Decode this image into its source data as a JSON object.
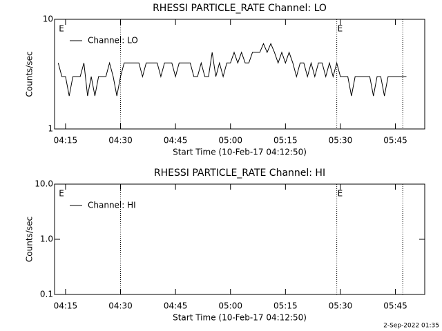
{
  "chart_data": [
    {
      "type": "line",
      "title": "RHESSI PARTICLE_RATE Channel: LO",
      "x_label": "Start Time (10-Feb-17 04:12:50)",
      "y_label": "Counts/sec",
      "y_log": true,
      "xlim": [
        "04:12",
        "05:53"
      ],
      "xticks": [
        "04:15",
        "04:30",
        "04:45",
        "05:00",
        "05:15",
        "05:30",
        "05:45"
      ],
      "ylim": [
        1,
        10
      ],
      "yticks": [
        1,
        10
      ],
      "legend": "upper left",
      "event_lines": [
        "04:30",
        "05:29",
        "05:47"
      ],
      "annotations": [
        {
          "text": "E",
          "x": "04:13"
        },
        {
          "text": "E",
          "x": "05:29"
        }
      ],
      "x": [
        "04:13",
        "04:14",
        "04:15",
        "04:16",
        "04:17",
        "04:18",
        "04:19",
        "04:20",
        "04:21",
        "04:22",
        "04:23",
        "04:24",
        "04:25",
        "04:26",
        "04:27",
        "04:28",
        "04:29",
        "04:30",
        "04:31",
        "04:32",
        "04:33",
        "04:34",
        "04:35",
        "04:36",
        "04:37",
        "04:38",
        "04:39",
        "04:40",
        "04:41",
        "04:42",
        "04:43",
        "04:44",
        "04:45",
        "04:46",
        "04:47",
        "04:48",
        "04:49",
        "04:50",
        "04:51",
        "04:52",
        "04:53",
        "04:54",
        "04:55",
        "04:56",
        "04:57",
        "04:58",
        "04:59",
        "05:00",
        "05:01",
        "05:02",
        "05:03",
        "05:04",
        "05:05",
        "05:06",
        "05:07",
        "05:08",
        "05:09",
        "05:10",
        "05:11",
        "05:12",
        "05:13",
        "05:14",
        "05:15",
        "05:16",
        "05:17",
        "05:18",
        "05:19",
        "05:20",
        "05:21",
        "05:22",
        "05:23",
        "05:24",
        "05:25",
        "05:26",
        "05:27",
        "05:28",
        "05:29",
        "05:30",
        "05:31",
        "05:32",
        "05:33",
        "05:34",
        "05:35",
        "05:36",
        "05:37",
        "05:38",
        "05:39",
        "05:40",
        "05:41",
        "05:42",
        "05:43",
        "05:44",
        "05:45",
        "05:46",
        "05:47",
        "05:48"
      ],
      "series": [
        {
          "name": "Channel: LO",
          "color": "#000000",
          "values": [
            4,
            3,
            3,
            2,
            3,
            3,
            3,
            4,
            2,
            3,
            2,
            3,
            3,
            3,
            4,
            3,
            2,
            3,
            4,
            4,
            4,
            4,
            4,
            3,
            4,
            4,
            4,
            4,
            3,
            4,
            4,
            4,
            3,
            4,
            4,
            4,
            4,
            3,
            3,
            4,
            3,
            3,
            5,
            3,
            4,
            3,
            4,
            4,
            5,
            4,
            5,
            4,
            4,
            5,
            5,
            5,
            6,
            5,
            6,
            5,
            4,
            5,
            4,
            5,
            4,
            3,
            4,
            4,
            3,
            4,
            3,
            4,
            4,
            3,
            4,
            3,
            4,
            3,
            3,
            3,
            2,
            3,
            3,
            3,
            3,
            3,
            2,
            3,
            3,
            2,
            3,
            3,
            3,
            3,
            3,
            3
          ]
        }
      ]
    },
    {
      "type": "line",
      "title": "RHESSI PARTICLE_RATE Channel: HI",
      "x_label": "Start Time (10-Feb-17 04:12:50)",
      "y_label": "Counts/sec",
      "y_log": true,
      "xlim": [
        "04:12",
        "05:53"
      ],
      "xticks": [
        "04:15",
        "04:30",
        "04:45",
        "05:00",
        "05:15",
        "05:30",
        "05:45"
      ],
      "ylim": [
        0.1,
        10
      ],
      "yticks": [
        0.1,
        {
          "value": 1,
          "label": "1.0"
        },
        {
          "value": 10,
          "label": "10.0"
        }
      ],
      "legend": "upper left",
      "event_lines": [
        "04:30",
        "05:29",
        "05:47"
      ],
      "annotations": [
        {
          "text": "E",
          "x": "04:13"
        },
        {
          "text": "E",
          "x": "05:29"
        }
      ],
      "x": [],
      "series": [
        {
          "name": "Channel: HI",
          "color": "#000000",
          "values": []
        }
      ]
    }
  ],
  "footer": "2-Sep-2022 01:35"
}
